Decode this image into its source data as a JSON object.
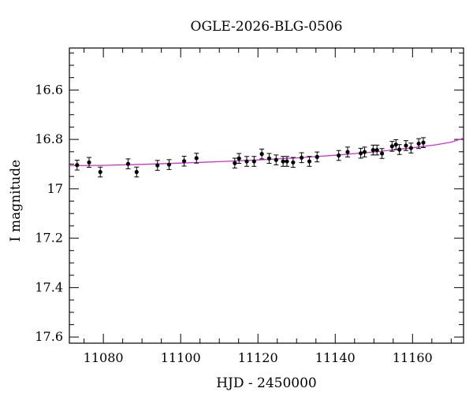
{
  "chart_data": {
    "type": "scatter",
    "title": "OGLE-2026-BLG-0506",
    "xlabel": "HJD - 2450000",
    "ylabel": "I magnitude",
    "xlim": [
      11071.2,
      11173.2
    ],
    "ylim": [
      17.625,
      16.43
    ],
    "y_inverted": true,
    "grid": false,
    "x_ticks": [
      11080,
      11100,
      11120,
      11140,
      11160
    ],
    "x_tick_labels": [
      "11080",
      "11100",
      "11120",
      "11140",
      "11160"
    ],
    "y_ticks": [
      16.6,
      16.8,
      17.0,
      17.2,
      17.4,
      17.6
    ],
    "y_tick_labels": [
      "16.6",
      "16.8",
      "17",
      "17.2",
      "17.4",
      "17.6"
    ],
    "series": [
      {
        "kind": "observations",
        "color": "#000000",
        "points": [
          {
            "x": 11073.2,
            "y": 16.904,
            "err": 0.02
          },
          {
            "x": 11076.3,
            "y": 16.893,
            "err": 0.02
          },
          {
            "x": 11079.2,
            "y": 16.932,
            "err": 0.02
          },
          {
            "x": 11086.4,
            "y": 16.899,
            "err": 0.02
          },
          {
            "x": 11088.6,
            "y": 16.932,
            "err": 0.02
          },
          {
            "x": 11094.0,
            "y": 16.905,
            "err": 0.02
          },
          {
            "x": 11097.0,
            "y": 16.902,
            "err": 0.02
          },
          {
            "x": 11100.9,
            "y": 16.888,
            "err": 0.02
          },
          {
            "x": 11104.1,
            "y": 16.876,
            "err": 0.02
          },
          {
            "x": 11114.0,
            "y": 16.896,
            "err": 0.02
          },
          {
            "x": 11115.1,
            "y": 16.877,
            "err": 0.02
          },
          {
            "x": 11117.1,
            "y": 16.889,
            "err": 0.02
          },
          {
            "x": 11119.0,
            "y": 16.889,
            "err": 0.02
          },
          {
            "x": 11121.0,
            "y": 16.859,
            "err": 0.02
          },
          {
            "x": 11122.9,
            "y": 16.877,
            "err": 0.02
          },
          {
            "x": 11124.7,
            "y": 16.883,
            "err": 0.02
          },
          {
            "x": 11126.5,
            "y": 16.889,
            "err": 0.02
          },
          {
            "x": 11127.5,
            "y": 16.889,
            "err": 0.02
          },
          {
            "x": 11129.1,
            "y": 16.893,
            "err": 0.02
          },
          {
            "x": 11131.3,
            "y": 16.874,
            "err": 0.02
          },
          {
            "x": 11133.3,
            "y": 16.889,
            "err": 0.02
          },
          {
            "x": 11135.3,
            "y": 16.871,
            "err": 0.02
          },
          {
            "x": 11140.9,
            "y": 16.865,
            "err": 0.02
          },
          {
            "x": 11143.2,
            "y": 16.851,
            "err": 0.02
          },
          {
            "x": 11146.6,
            "y": 16.856,
            "err": 0.02
          },
          {
            "x": 11147.6,
            "y": 16.851,
            "err": 0.02
          },
          {
            "x": 11149.8,
            "y": 16.843,
            "err": 0.02
          },
          {
            "x": 11150.8,
            "y": 16.843,
            "err": 0.02
          },
          {
            "x": 11152.1,
            "y": 16.857,
            "err": 0.02
          },
          {
            "x": 11154.7,
            "y": 16.828,
            "err": 0.02
          },
          {
            "x": 11155.7,
            "y": 16.821,
            "err": 0.02
          },
          {
            "x": 11156.6,
            "y": 16.841,
            "err": 0.02
          },
          {
            "x": 11158.3,
            "y": 16.825,
            "err": 0.02
          },
          {
            "x": 11159.6,
            "y": 16.835,
            "err": 0.02
          },
          {
            "x": 11161.6,
            "y": 16.817,
            "err": 0.02
          },
          {
            "x": 11162.8,
            "y": 16.813,
            "err": 0.02
          }
        ]
      },
      {
        "kind": "model",
        "color": "#cc33cc",
        "x": [
          11071.2,
          11080,
          11090,
          11100,
          11110,
          11120,
          11130,
          11140,
          11150,
          11160,
          11166,
          11170,
          11173.2
        ],
        "y": [
          16.906,
          16.905,
          16.901,
          16.896,
          16.89,
          16.883,
          16.875,
          16.864,
          16.851,
          16.834,
          16.822,
          16.811,
          16.795
        ]
      }
    ]
  }
}
